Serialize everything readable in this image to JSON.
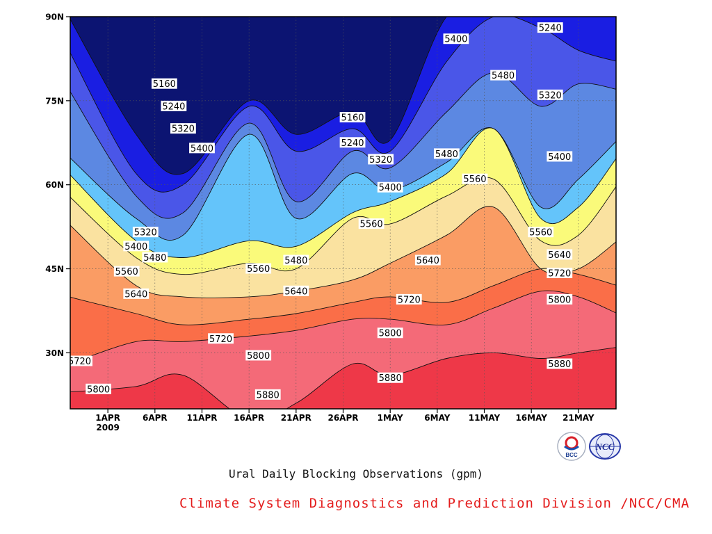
{
  "chart_data": {
    "type": "heatmap",
    "subtype": "filled-contour",
    "title": "Ural Daily Blocking Observations (gpm)",
    "xlabel": "",
    "ylabel": "",
    "year_label": "2009",
    "x_range": [
      "2009-03-28",
      "2009-05-25"
    ],
    "ylim": [
      20,
      90
    ],
    "x_ticks": [
      {
        "date": "2009-04-01",
        "label": "1APR"
      },
      {
        "date": "2009-04-06",
        "label": "6APR"
      },
      {
        "date": "2009-04-11",
        "label": "11APR"
      },
      {
        "date": "2009-04-16",
        "label": "16APR"
      },
      {
        "date": "2009-04-21",
        "label": "21APR"
      },
      {
        "date": "2009-04-26",
        "label": "26APR"
      },
      {
        "date": "2009-05-01",
        "label": "1MAY"
      },
      {
        "date": "2009-05-06",
        "label": "6MAY"
      },
      {
        "date": "2009-05-11",
        "label": "11MAY"
      },
      {
        "date": "2009-05-16",
        "label": "16MAY"
      },
      {
        "date": "2009-05-21",
        "label": "21MAY"
      }
    ],
    "y_ticks": [
      {
        "value": 90,
        "label": "90N"
      },
      {
        "value": 75,
        "label": "75N"
      },
      {
        "value": 60,
        "label": "60N"
      },
      {
        "value": 45,
        "label": "45N"
      },
      {
        "value": 30,
        "label": "30N"
      }
    ],
    "grid": true,
    "contour_levels": [
      5160,
      5240,
      5320,
      5400,
      5480,
      5560,
      5640,
      5720,
      5800,
      5880
    ],
    "fill_colors": [
      "#0c1472",
      "#1a1ee2",
      "#4a56e8",
      "#5c88e2",
      "#64c4fa",
      "#fafa7a",
      "#fae2a0",
      "#fa9c64",
      "#fa6e48",
      "#f46a78",
      "#ee3848"
    ],
    "x_nodes": [
      "2009-03-28",
      "2009-04-04",
      "2009-04-09",
      "2009-04-16",
      "2009-04-21",
      "2009-04-27",
      "2009-05-01",
      "2009-05-07",
      "2009-05-12",
      "2009-05-17",
      "2009-05-21",
      "2009-05-25"
    ],
    "contour_lines": [
      {
        "level": 5160,
        "lat": [
          90.0,
          69.0,
          62.0,
          75.0,
          69.0,
          73.0,
          68.0,
          90.0,
          90.0,
          90.0,
          90.0,
          90.0
        ]
      },
      {
        "level": 5240,
        "lat": [
          84.0,
          62.0,
          60.0,
          74.0,
          66.0,
          70.0,
          66.0,
          82.0,
          90.0,
          88.0,
          84.0,
          82.0
        ]
      },
      {
        "level": 5320,
        "lat": [
          77.0,
          58.0,
          55.0,
          71.0,
          57.0,
          66.0,
          63.0,
          73.0,
          80.0,
          74.0,
          78.0,
          77.0
        ]
      },
      {
        "level": 5400,
        "lat": [
          65.0,
          54.0,
          51.0,
          69.0,
          54.0,
          62.0,
          59.0,
          64.0,
          70.0,
          56.0,
          61.0,
          68.0
        ]
      },
      {
        "level": 5480,
        "lat": [
          62.0,
          50.0,
          47.0,
          50.0,
          49.0,
          55.0,
          57.0,
          62.0,
          70.0,
          54.0,
          56.0,
          65.0
        ]
      },
      {
        "level": 5560,
        "lat": [
          58.0,
          47.0,
          44.0,
          46.0,
          45.0,
          54.0,
          53.0,
          58.0,
          61.0,
          50.0,
          51.0,
          60.0
        ]
      },
      {
        "level": 5640,
        "lat": [
          53.0,
          42.0,
          40.0,
          40.0,
          41.0,
          43.0,
          46.0,
          51.0,
          56.0,
          45.0,
          45.0,
          50.0
        ]
      },
      {
        "level": 5720,
        "lat": [
          40.0,
          37.0,
          35.0,
          36.0,
          37.0,
          39.0,
          40.0,
          39.0,
          42.0,
          45.0,
          44.0,
          42.0
        ]
      },
      {
        "level": 5800,
        "lat": [
          28.0,
          32.0,
          32.0,
          33.0,
          34.0,
          36.0,
          36.0,
          35.0,
          38.0,
          41.0,
          40.0,
          37.0
        ]
      },
      {
        "level": 5880,
        "lat": [
          23.0,
          24.0,
          26.0,
          18.0,
          21.0,
          28.0,
          26.0,
          29.0,
          30.0,
          29.0,
          30.0,
          31.0
        ]
      }
    ],
    "contour_labels": [
      {
        "text": "5160",
        "date": "2009-04-07",
        "lat": 78.0
      },
      {
        "text": "5240",
        "date": "2009-04-08",
        "lat": 74.0
      },
      {
        "text": "5320",
        "date": "2009-04-09",
        "lat": 70.0
      },
      {
        "text": "5400",
        "date": "2009-04-11",
        "lat": 66.5
      },
      {
        "text": "5320",
        "date": "2009-04-05",
        "lat": 51.5
      },
      {
        "text": "5400",
        "date": "2009-04-04",
        "lat": 49.0
      },
      {
        "text": "5480",
        "date": "2009-04-06",
        "lat": 47.0
      },
      {
        "text": "5560",
        "date": "2009-04-03",
        "lat": 44.5
      },
      {
        "text": "5640",
        "date": "2009-04-04",
        "lat": 40.5
      },
      {
        "text": "5720",
        "date": "2009-03-29",
        "lat": 28.5
      },
      {
        "text": "5800",
        "date": "2009-03-31",
        "lat": 23.5
      },
      {
        "text": "5720",
        "date": "2009-04-13",
        "lat": 32.5
      },
      {
        "text": "5800",
        "date": "2009-04-17",
        "lat": 29.5
      },
      {
        "text": "5880",
        "date": "2009-04-18",
        "lat": 22.5
      },
      {
        "text": "5560",
        "date": "2009-04-17",
        "lat": 45.0
      },
      {
        "text": "5480",
        "date": "2009-04-21",
        "lat": 46.5
      },
      {
        "text": "5640",
        "date": "2009-04-21",
        "lat": 41.0
      },
      {
        "text": "5160",
        "date": "2009-04-27",
        "lat": 72.0
      },
      {
        "text": "5240",
        "date": "2009-04-27",
        "lat": 67.5
      },
      {
        "text": "5320",
        "date": "2009-04-30",
        "lat": 64.5
      },
      {
        "text": "5400",
        "date": "2009-05-01",
        "lat": 59.5
      },
      {
        "text": "5560",
        "date": "2009-04-29",
        "lat": 53.0
      },
      {
        "text": "5720",
        "date": "2009-05-03",
        "lat": 39.5
      },
      {
        "text": "5800",
        "date": "2009-05-01",
        "lat": 33.5
      },
      {
        "text": "5880",
        "date": "2009-05-01",
        "lat": 25.5
      },
      {
        "text": "5640",
        "date": "2009-05-05",
        "lat": 46.5
      },
      {
        "text": "5480",
        "date": "2009-05-07",
        "lat": 65.5
      },
      {
        "text": "5560",
        "date": "2009-05-10",
        "lat": 61.0
      },
      {
        "text": "5400",
        "date": "2009-05-08",
        "lat": 86.0
      },
      {
        "text": "5480",
        "date": "2009-05-13",
        "lat": 79.5
      },
      {
        "text": "5240",
        "date": "2009-05-18",
        "lat": 88.0
      },
      {
        "text": "5320",
        "date": "2009-05-18",
        "lat": 76.0
      },
      {
        "text": "5400",
        "date": "2009-05-19",
        "lat": 65.0
      },
      {
        "text": "5560",
        "date": "2009-05-17",
        "lat": 51.5
      },
      {
        "text": "5640",
        "date": "2009-05-19",
        "lat": 47.5
      },
      {
        "text": "5720",
        "date": "2009-05-19",
        "lat": 44.2
      },
      {
        "text": "5800",
        "date": "2009-05-19",
        "lat": 39.5
      },
      {
        "text": "5880",
        "date": "2009-05-19",
        "lat": 28.0
      }
    ]
  },
  "caption": "Ural Daily Blocking Observations (gpm)",
  "credit": {
    "text": "Climate System Diagnostics and Prediction Division /NCC/CMA",
    "color": "#e41c1c"
  },
  "logos": {
    "left": "BCC",
    "right": "NCC"
  }
}
